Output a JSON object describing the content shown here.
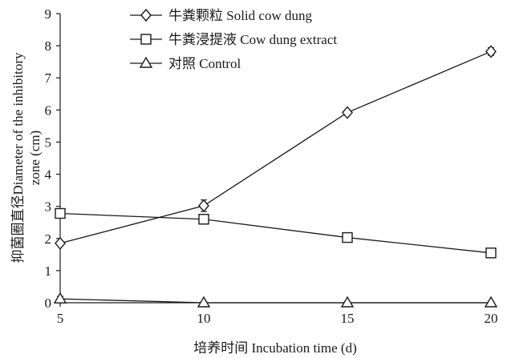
{
  "chart_data": {
    "type": "line",
    "title": "",
    "xlabel": "培养时间 Incubation time (d)",
    "ylabel_line1": "抑菌圈直径Diameter of the inhibitory",
    "ylabel_line2": "zone (cm)",
    "x": [
      5,
      10,
      15,
      20
    ],
    "xlim": [
      5,
      20
    ],
    "ylim": [
      0,
      9
    ],
    "xticks": [
      5,
      10,
      15,
      20
    ],
    "yticks": [
      0,
      1,
      2,
      3,
      4,
      5,
      6,
      7,
      8,
      9
    ],
    "grid": false,
    "legend_position": "top-left",
    "series": [
      {
        "name": "牛粪颗粒 Solid cow dung",
        "marker": "diamond",
        "values": [
          1.85,
          3.02,
          5.92,
          7.82
        ],
        "errors": [
          0.08,
          0.18,
          0.08,
          0.12
        ]
      },
      {
        "name": "牛粪浸提液 Cow dung extract",
        "marker": "square",
        "values": [
          2.78,
          2.6,
          2.03,
          1.55
        ],
        "errors": [
          0.12,
          0.15,
          0.05,
          0.14
        ]
      },
      {
        "name": "对照 Control",
        "marker": "triangle",
        "values": [
          0.12,
          0.0,
          0.0,
          0.0
        ],
        "errors": [
          0.08,
          0.0,
          0.0,
          0.0
        ]
      }
    ]
  }
}
